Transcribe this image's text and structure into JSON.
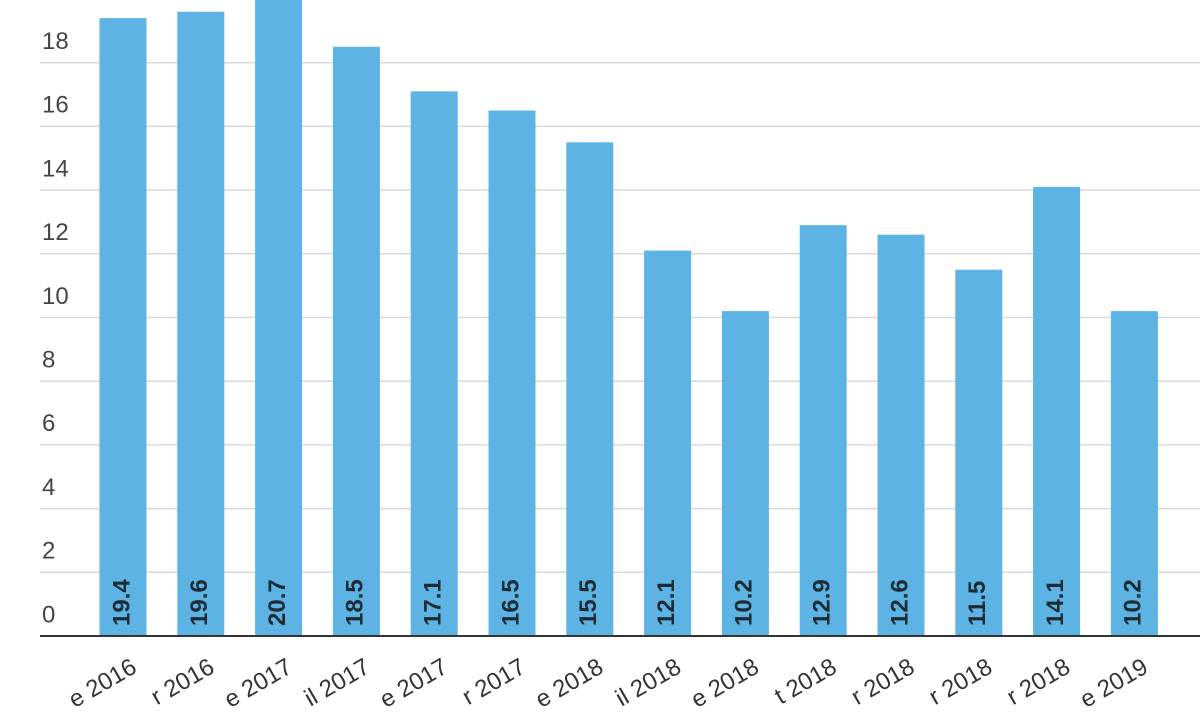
{
  "chart_data": {
    "type": "bar",
    "categories": [
      "e 2016",
      "r 2016",
      "e 2017",
      "il 2017",
      "e 2017",
      "r 2017",
      "e 2018",
      "il 2018",
      "e 2018",
      "t 2018",
      "r 2018",
      "r 2018",
      "r 2018",
      "e 2019"
    ],
    "values": [
      19.4,
      19.6,
      20.7,
      18.5,
      17.1,
      16.5,
      15.5,
      12.1,
      10.2,
      12.9,
      12.6,
      11.5,
      14.1,
      10.2
    ],
    "color": "#5cb3e4",
    "ylim": [
      0,
      20
    ],
    "yticks": [
      0,
      2,
      4,
      6,
      8,
      10,
      12,
      14,
      16,
      18
    ],
    "grid": true
  }
}
